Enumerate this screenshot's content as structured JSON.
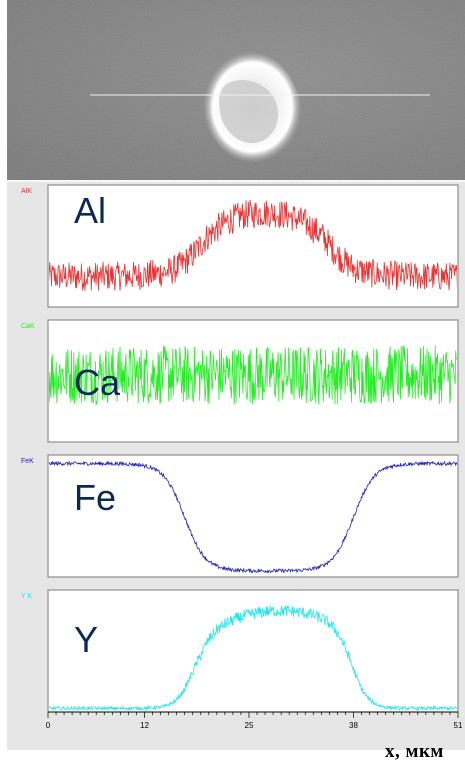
{
  "figure": {
    "x_axis_label": "x, мкм"
  },
  "colors": {
    "al": "#ee3030",
    "ca": "#22ee22",
    "fe": "#2222bb",
    "y": "#22e6ee",
    "big_label": "#0a2a55",
    "panel_bg": "#ffffff",
    "frame_bg": "#e6e6e6"
  },
  "chart_data": {
    "type": "line",
    "x_ticks": [
      0,
      12,
      25,
      38,
      51
    ],
    "xlim": [
      0,
      51
    ],
    "panels": [
      {
        "key": "al",
        "small_label": "AlK",
        "big_label": "Al",
        "baseline": 0.25,
        "plateau": 0.8,
        "edges": [
          19,
          35
        ],
        "noise": 0.12,
        "shape": "peak"
      },
      {
        "key": "ca",
        "small_label": "CaK",
        "big_label": "Ca",
        "baseline": 0.55,
        "plateau": 0.55,
        "edges": [
          0,
          0
        ],
        "noise": 0.22,
        "shape": "flat"
      },
      {
        "key": "fe",
        "small_label": "FeK",
        "big_label": "Fe",
        "baseline": 0.93,
        "plateau": 0.05,
        "edges": [
          17,
          38
        ],
        "noise": 0.015,
        "shape": "dip"
      },
      {
        "key": "y",
        "small_label": "Y K",
        "big_label": "Y",
        "baseline": 0.03,
        "plateau": 0.83,
        "edges": [
          18,
          38
        ],
        "noise": 0.035,
        "shape": "plateau"
      }
    ]
  }
}
